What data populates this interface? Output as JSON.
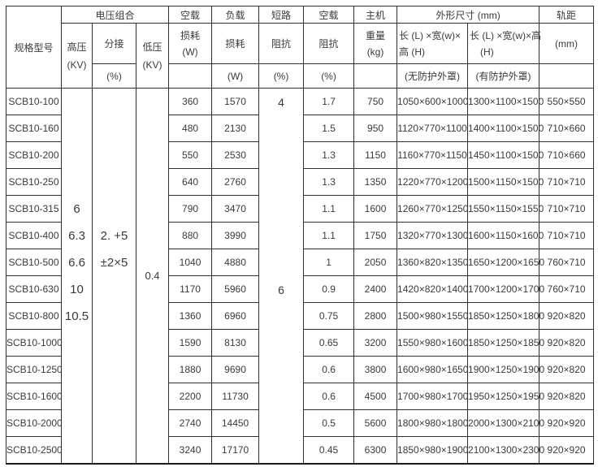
{
  "table": {
    "header": {
      "spec_model": "规格型号",
      "voltage_combo": "电压组合",
      "hv_label": "高压",
      "hv_unit": "(KV)",
      "tap_label": "分接",
      "tap_unit": "(%)",
      "lv_label": "低压",
      "lv_unit": "(KV)",
      "no_load_label": "空载",
      "no_load_loss_label": "损耗",
      "no_load_loss_unit": "(W)",
      "load_label": "负载",
      "load_loss_label": "损耗",
      "load_loss_unit": "(W)",
      "short_circuit_label": "短路",
      "short_circuit_sub": "阻抗",
      "short_circuit_unit": "(%)",
      "no_load_current_label": "空载",
      "no_load_current_sub": "阻抗",
      "no_load_current_unit": "(%)",
      "main_unit_label": "主机",
      "weight_label": "重量",
      "weight_unit": "(kg)",
      "dimensions_label": "外形尺寸 (mm)",
      "dim_unprotected_line1": "长 (L) ×宽(w)×",
      "dim_unprotected_line2": "高 (H)",
      "dim_unprotected_note": "(无防护外罩)",
      "dim_protected_line1": "长 (L) ×宽(w)×高",
      "dim_protected_line2": "(H)",
      "dim_protected_note": "(有防护外罩)",
      "gauge_label": "轨距",
      "gauge_unit": "(mm)"
    },
    "merged": {
      "hv_values": [
        "6",
        "6.3",
        "6.6",
        "10",
        "10.5"
      ],
      "tap_values": [
        "2. +5",
        "±2×5"
      ],
      "lv_values": [
        "0.4"
      ],
      "impedance_values": [
        "4",
        "6"
      ]
    },
    "rows": [
      {
        "model": "SCB10-100",
        "no_load_loss": "360",
        "load_loss": "1570",
        "no_load_current": "1.7",
        "weight": "750",
        "dim_unprotected": "1050×600×1000",
        "dim_protected": "1300×1100×1500",
        "gauge": "550×550"
      },
      {
        "model": "SCB10-160",
        "no_load_loss": "480",
        "load_loss": "2130",
        "no_load_current": "1.5",
        "weight": "950",
        "dim_unprotected": "1120×770×1100",
        "dim_protected": "1400×1100×1500",
        "gauge": "710×660"
      },
      {
        "model": "SCB10-200",
        "no_load_loss": "550",
        "load_loss": "2530",
        "no_load_current": "1.3",
        "weight": "1150",
        "dim_unprotected": "1160×770×1150",
        "dim_protected": "1450×1100×1500",
        "gauge": "710×660"
      },
      {
        "model": "SCB10-250",
        "no_load_loss": "640",
        "load_loss": "2760",
        "no_load_current": "1.3",
        "weight": "1350",
        "dim_unprotected": "1220×770×1200",
        "dim_protected": "1500×1150×1500",
        "gauge": "710×710"
      },
      {
        "model": "SCB10-315",
        "no_load_loss": "790",
        "load_loss": "3470",
        "no_load_current": "1.1",
        "weight": "1600",
        "dim_unprotected": "1260×770×1250",
        "dim_protected": "1550×1150×1550",
        "gauge": "710×710"
      },
      {
        "model": "SCB10-400",
        "no_load_loss": "880",
        "load_loss": "3990",
        "no_load_current": "1.1",
        "weight": "1750",
        "dim_unprotected": "1320×770×1300",
        "dim_protected": "1600×1150×1600",
        "gauge": "710×710"
      },
      {
        "model": "SCB10-500",
        "no_load_loss": "1040",
        "load_loss": "4880",
        "no_load_current": "1",
        "weight": "2050",
        "dim_unprotected": "1360×820×1350",
        "dim_protected": "1650×1200×1650",
        "gauge": "760×710"
      },
      {
        "model": "SCB10-630",
        "no_load_loss": "1170",
        "load_loss": "5960",
        "no_load_current": "0.9",
        "weight": "2400",
        "dim_unprotected": "1420×820×1400",
        "dim_protected": "1700×1200×1700",
        "gauge": "760×710"
      },
      {
        "model": "SCB10-800",
        "no_load_loss": "1360",
        "load_loss": "6960",
        "no_load_current": "0.75",
        "weight": "2800",
        "dim_unprotected": "1500×980×1550",
        "dim_protected": "1850×1250×1800",
        "gauge": "920×820"
      },
      {
        "model": "SCB10-1000",
        "no_load_loss": "1590",
        "load_loss": "8130",
        "no_load_current": "0.65",
        "weight": "3200",
        "dim_unprotected": "1550×980×1600",
        "dim_protected": "1850×1250×1850",
        "gauge": "920×820"
      },
      {
        "model": "SCB10-1250",
        "no_load_loss": "1880",
        "load_loss": "9690",
        "no_load_current": "0.6",
        "weight": "3800",
        "dim_unprotected": "1600×980×1650",
        "dim_protected": "1900×1250×1900",
        "gauge": "920×820"
      },
      {
        "model": "SCB10-1600",
        "no_load_loss": "2200",
        "load_loss": "11730",
        "no_load_current": "0.6",
        "weight": "4500",
        "dim_unprotected": "1700×980×1700",
        "dim_protected": "1950×1250×1950",
        "gauge": "920×820"
      },
      {
        "model": "SCB10-2000",
        "no_load_loss": "2740",
        "load_loss": "14450",
        "no_load_current": "0.5",
        "weight": "5600",
        "dim_unprotected": "1800×980×1800",
        "dim_protected": "2000×1300×2100",
        "gauge": "920×920"
      },
      {
        "model": "SCB10-2500",
        "no_load_loss": "3240",
        "load_loss": "17170",
        "no_load_current": "0.45",
        "weight": "6300",
        "dim_unprotected": "1850×980×1900",
        "dim_protected": "2100×1300×2300",
        "gauge": "920×920"
      }
    ]
  }
}
